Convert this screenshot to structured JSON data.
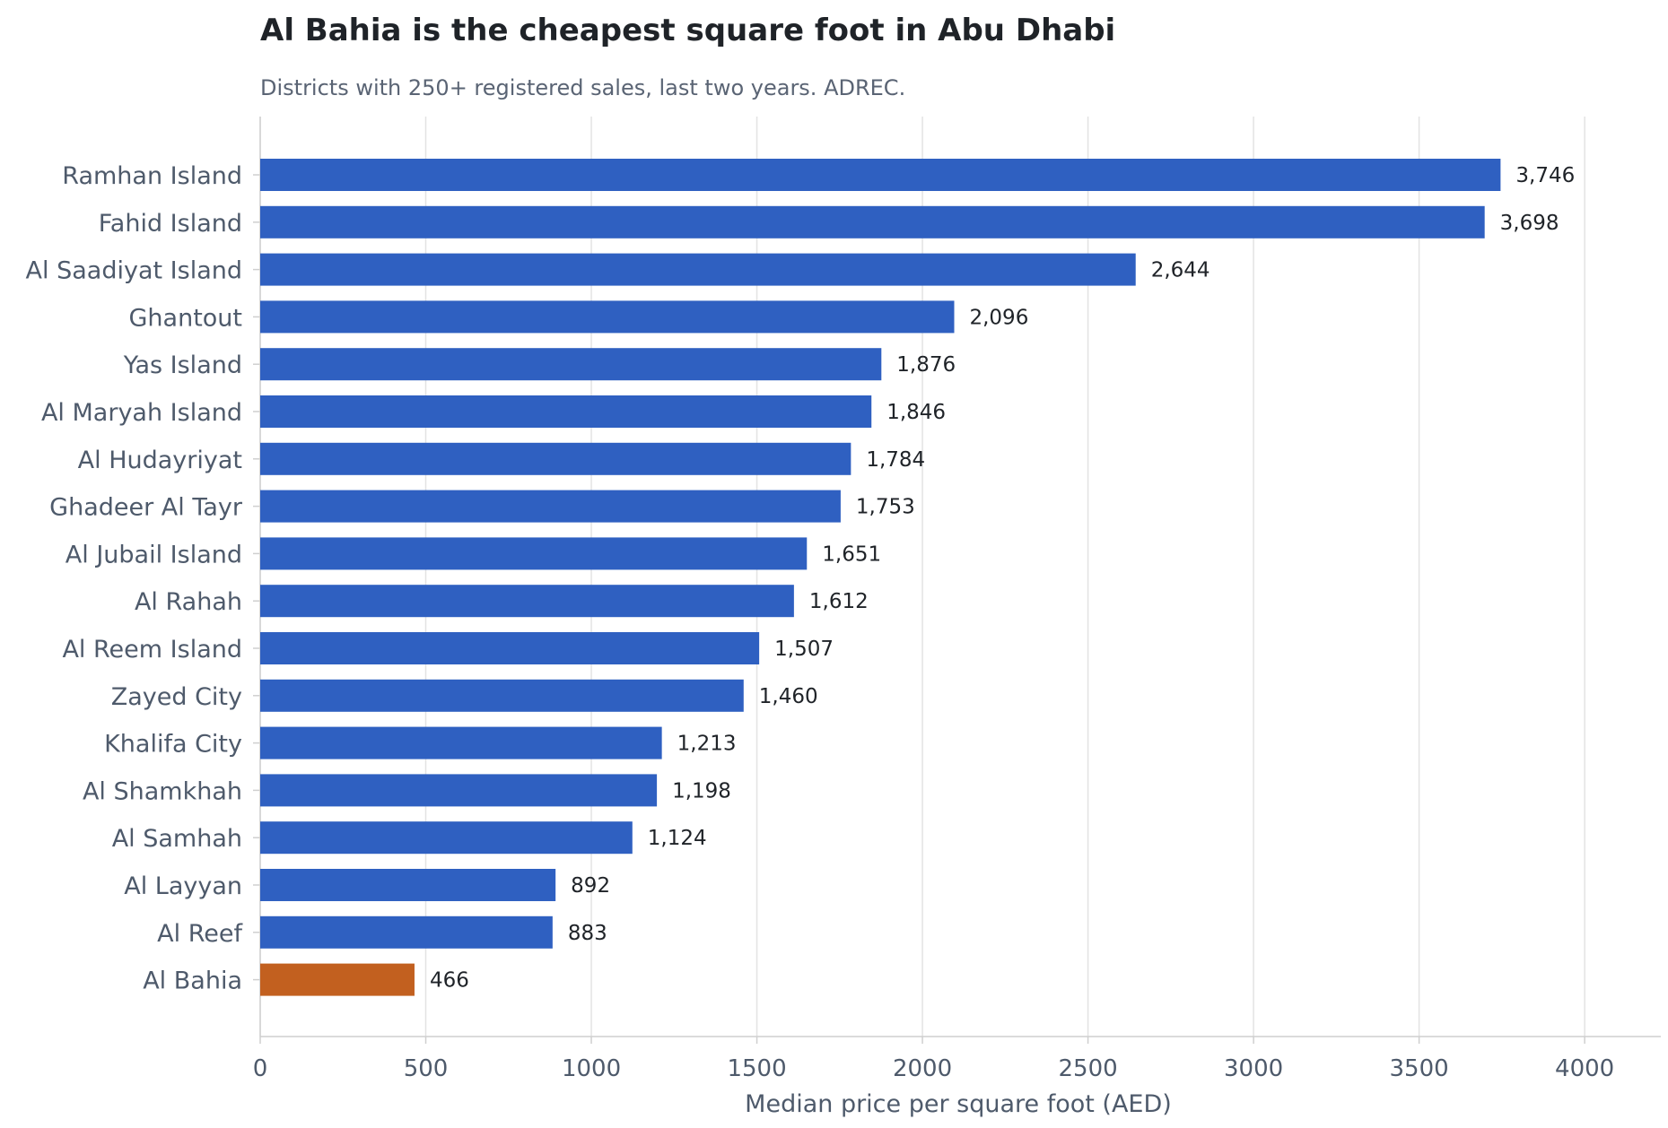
{
  "chart_data": {
    "type": "bar",
    "orientation": "horizontal",
    "title": "Al Bahia is the cheapest square foot in Abu Dhabi",
    "subtitle": "Districts with 250+ registered sales, last two years. ADREC.",
    "xlabel": "Median price per square foot (AED)",
    "ylabel": "",
    "xlim": [
      0,
      4230
    ],
    "xticks": [
      0,
      500,
      1000,
      1500,
      2000,
      2500,
      3000,
      3500,
      4000
    ],
    "grid": "vertical",
    "categories": [
      "Ramhan Island",
      "Fahid Island",
      "Al Saadiyat Island",
      "Ghantout",
      "Yas Island",
      "Al Maryah Island",
      "Al Hudayriyat",
      "Ghadeer Al Tayr",
      "Al Jubail Island",
      "Al Rahah",
      "Al Reem Island",
      "Zayed City",
      "Khalifa City",
      "Al Shamkhah",
      "Al Samhah",
      "Al Layyan",
      "Al Reef",
      "Al Bahia"
    ],
    "values": [
      3746,
      3698,
      2644,
      2096,
      1876,
      1846,
      1784,
      1753,
      1651,
      1612,
      1507,
      1460,
      1213,
      1198,
      1124,
      892,
      883,
      466
    ],
    "value_labels": [
      "3,746",
      "3,698",
      "2,644",
      "2,096",
      "1,876",
      "1,846",
      "1,784",
      "1,753",
      "1,651",
      "1,612",
      "1,507",
      "1,460",
      "1,213",
      "1,198",
      "1,124",
      "892",
      "883",
      "466"
    ],
    "highlight": "Al Bahia",
    "colors": {
      "bar": "#2f60c1",
      "highlight": "#c2601f",
      "grid": "#e3e3e3",
      "axis": "#cfcfcf"
    }
  }
}
